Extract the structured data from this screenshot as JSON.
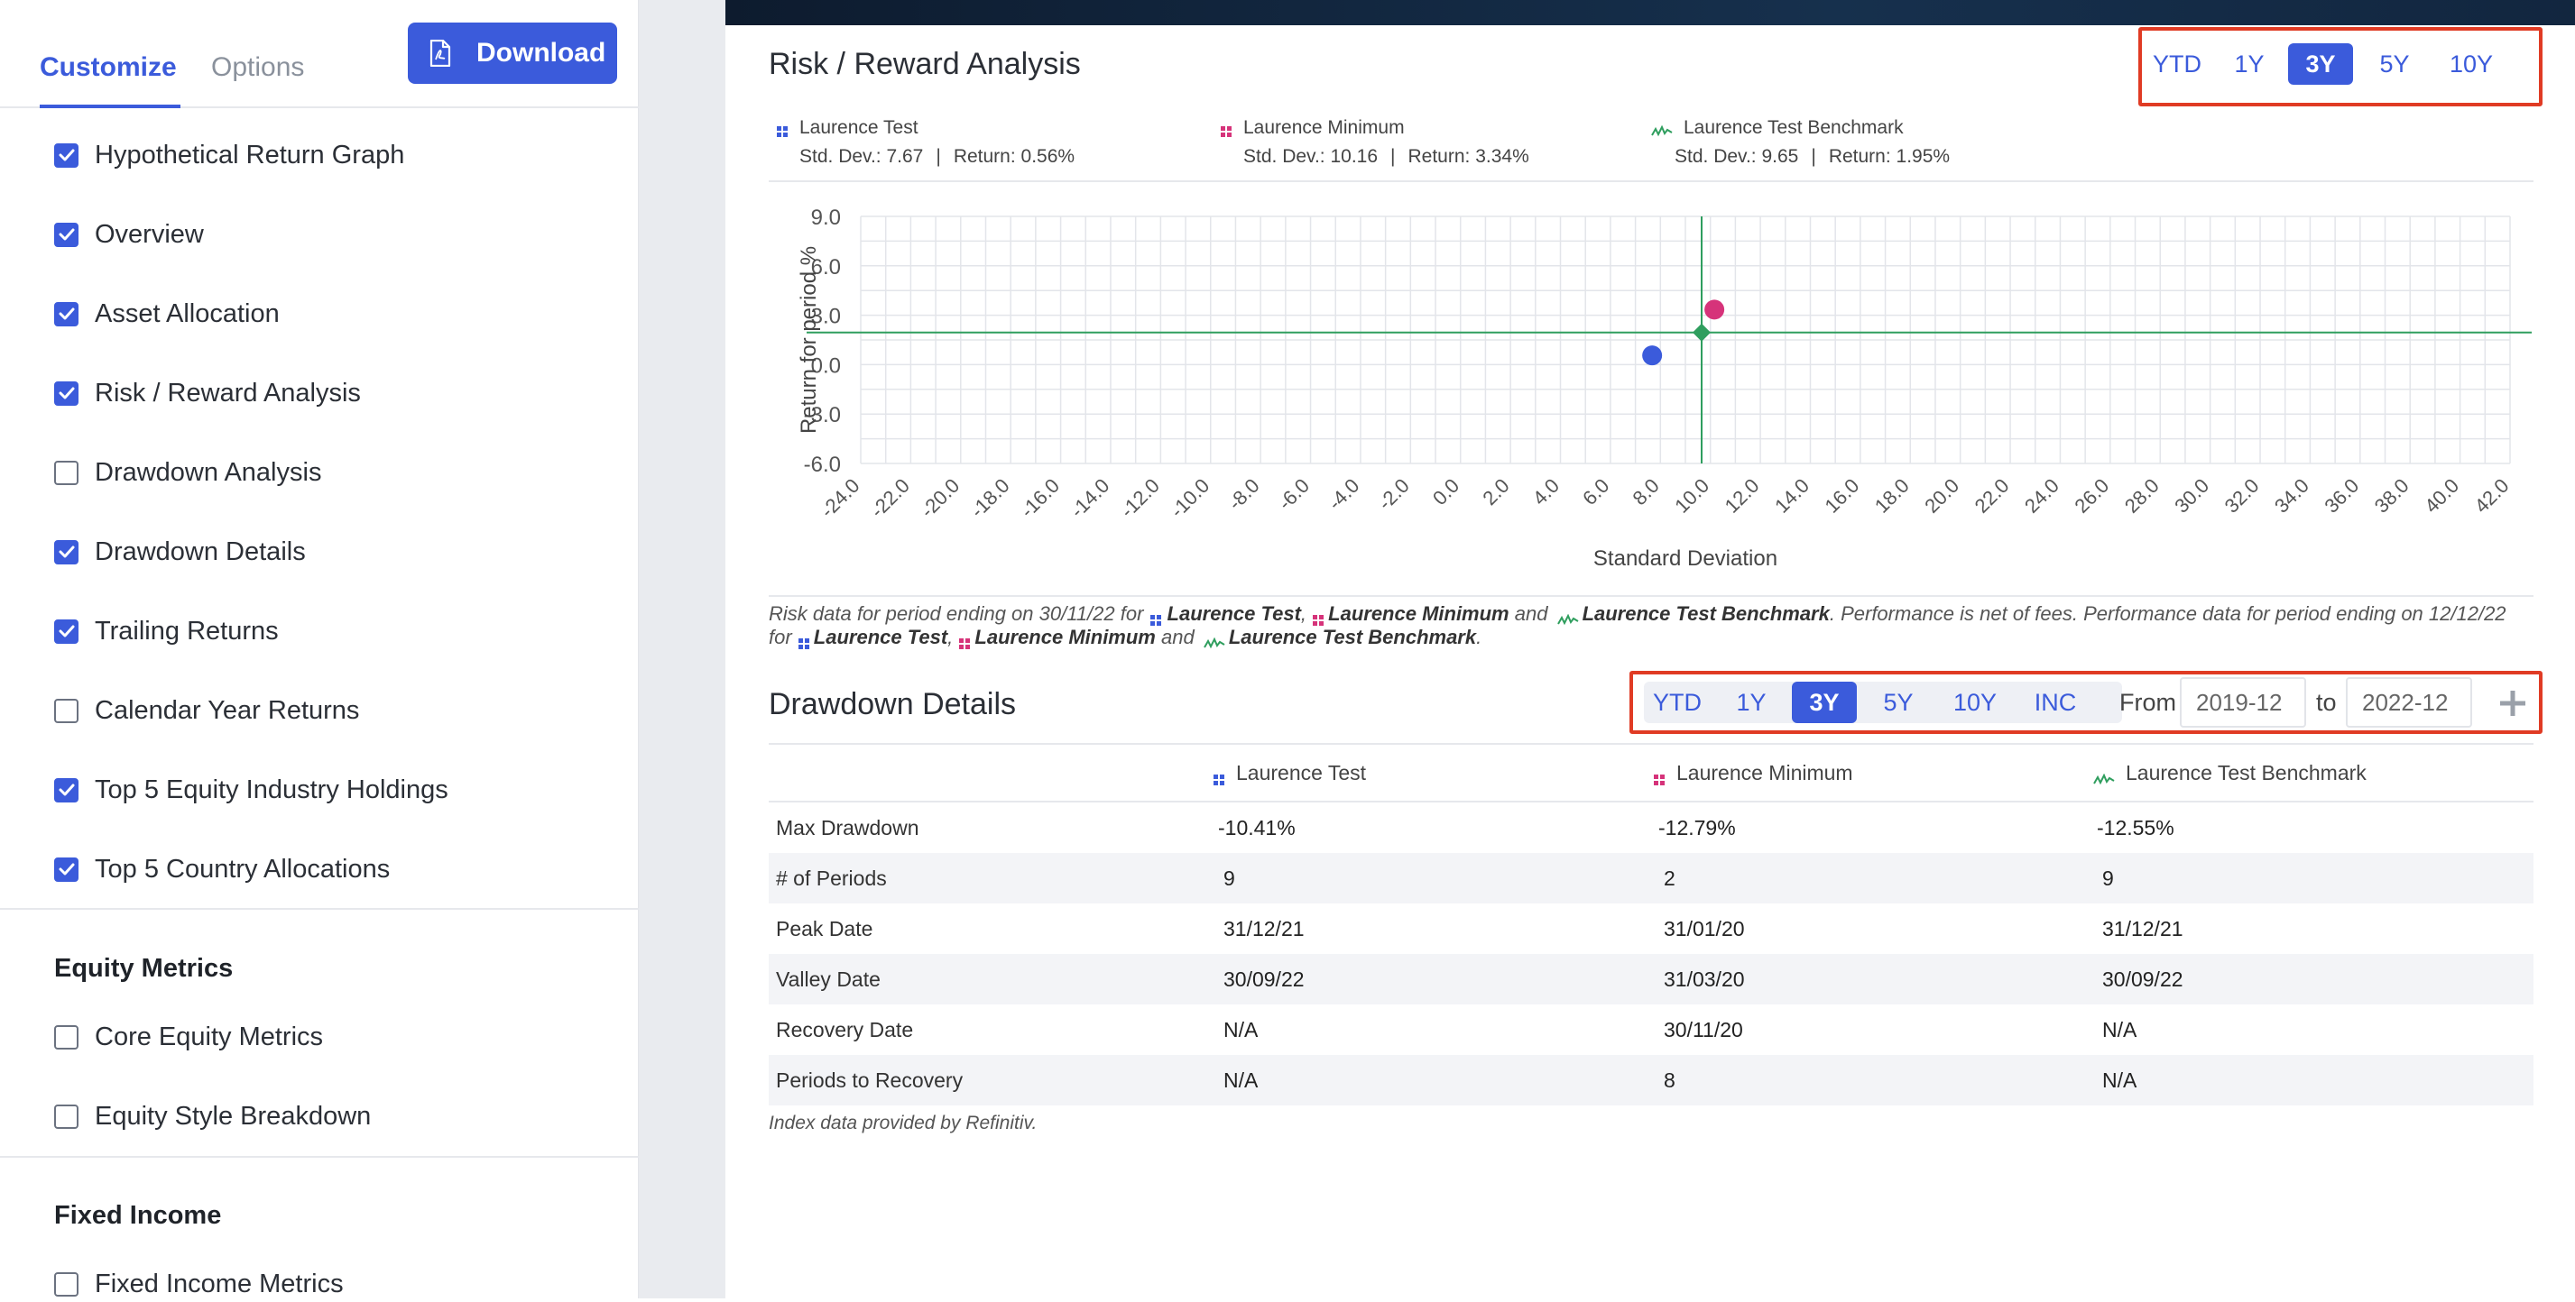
{
  "sidebar": {
    "tabs": [
      "Customize",
      "Options"
    ],
    "download_label": "Download",
    "items": [
      {
        "label": "Hypothetical Return Graph",
        "checked": true
      },
      {
        "label": "Overview",
        "checked": true
      },
      {
        "label": "Asset Allocation",
        "checked": true
      },
      {
        "label": "Risk / Reward Analysis",
        "checked": true
      },
      {
        "label": "Drawdown Analysis",
        "checked": false
      },
      {
        "label": "Drawdown Details",
        "checked": true
      },
      {
        "label": "Trailing Returns",
        "checked": true
      },
      {
        "label": "Calendar Year Returns",
        "checked": false
      },
      {
        "label": "Top 5 Equity Industry Holdings",
        "checked": true
      },
      {
        "label": "Top 5 Country Allocations",
        "checked": true
      }
    ],
    "equity_section": {
      "title": "Equity Metrics",
      "items": [
        {
          "label": "Core Equity Metrics",
          "checked": false
        },
        {
          "label": "Equity Style Breakdown",
          "checked": false
        }
      ]
    },
    "fixed_section": {
      "title": "Fixed Income",
      "items": [
        {
          "label": "Fixed Income Metrics",
          "checked": false
        }
      ]
    }
  },
  "risk_reward": {
    "title": "Risk / Reward Analysis",
    "periods": [
      "YTD",
      "1Y",
      "3Y",
      "5Y",
      "10Y"
    ],
    "active_period": "3Y",
    "legend": [
      {
        "name": "Laurence Test",
        "sd_label": "Std. Dev.: 7.67",
        "ret_label": "Return: 0.56%",
        "color": "#3b5bdb"
      },
      {
        "name": "Laurence Minimum",
        "sd_label": "Std. Dev.: 10.16",
        "ret_label": "Return: 3.34%",
        "color": "#d6337a"
      },
      {
        "name": "Laurence Test Benchmark",
        "sd_label": "Std. Dev.: 9.65",
        "ret_label": "Return: 1.95%",
        "color": "#2f9e5e"
      }
    ],
    "note": {
      "p1": "Risk data for period ending on 30/11/22 for ",
      "p2": " and ",
      "p3": ". Performance is net of fees. Performance data for period ending on 12/12/22",
      "p4": "for ",
      "p5": " and ",
      "comma": ", ",
      "end": "."
    }
  },
  "chart_data": {
    "type": "scatter",
    "xlabel": "Standard Deviation",
    "ylabel": "Return for period %",
    "xlim": [
      -24,
      42
    ],
    "ylim": [
      -6,
      9
    ],
    "x_ticks": [
      "-24.0",
      "-22.0",
      "-20.0",
      "-18.0",
      "-16.0",
      "-14.0",
      "-12.0",
      "-10.0",
      "-8.0",
      "-6.0",
      "-4.0",
      "-2.0",
      "0.0",
      "2.0",
      "4.0",
      "6.0",
      "8.0",
      "10.0",
      "12.0",
      "14.0",
      "16.0",
      "18.0",
      "20.0",
      "22.0",
      "24.0",
      "26.0",
      "28.0",
      "30.0",
      "32.0",
      "34.0",
      "36.0",
      "38.0",
      "40.0",
      "42.0"
    ],
    "y_ticks": [
      "9.0",
      "6.0",
      "3.0",
      "0.0",
      "-3.0",
      "-6.0"
    ],
    "grid": true,
    "series": [
      {
        "name": "Laurence Test",
        "x": 7.67,
        "y": 0.56,
        "color": "#3b5bdb",
        "marker": "circle"
      },
      {
        "name": "Laurence Minimum",
        "x": 10.16,
        "y": 3.34,
        "color": "#d6337a",
        "marker": "circle"
      },
      {
        "name": "Laurence Test Benchmark",
        "x": 9.65,
        "y": 1.95,
        "color": "#2f9e5e",
        "marker": "diamond"
      }
    ],
    "benchmark_crosshair": {
      "x": 9.65,
      "y": 1.95,
      "color": "#2f9e5e"
    }
  },
  "drawdown": {
    "title": "Drawdown Details",
    "periods": [
      "YTD",
      "1Y",
      "3Y",
      "5Y",
      "10Y",
      "INC"
    ],
    "active_period": "3Y",
    "from_label": "From",
    "from_value": "2019-12",
    "to_label": "to",
    "to_value": "2022-12",
    "columns": [
      "Laurence Test",
      "Laurence Minimum",
      "Laurence Test Benchmark"
    ],
    "rows": [
      {
        "label": "Max Drawdown",
        "values": [
          "-10.41%",
          "-12.79%",
          "-12.55%"
        ]
      },
      {
        "label": "# of Periods",
        "values": [
          "9",
          "2",
          "9"
        ]
      },
      {
        "label": "Peak Date",
        "values": [
          "31/12/21",
          "31/01/20",
          "31/12/21"
        ]
      },
      {
        "label": "Valley Date",
        "values": [
          "30/09/22",
          "31/03/20",
          "30/09/22"
        ]
      },
      {
        "label": "Recovery Date",
        "values": [
          "N/A",
          "30/11/20",
          "N/A"
        ]
      },
      {
        "label": "Periods to Recovery",
        "values": [
          "N/A",
          "8",
          "N/A"
        ]
      }
    ],
    "footnote": "Index data provided by Refinitiv."
  }
}
